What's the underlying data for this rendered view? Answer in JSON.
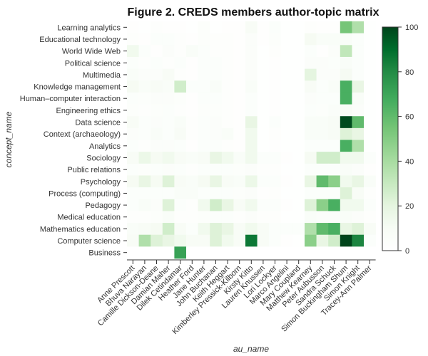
{
  "chart_data": {
    "type": "heatmap",
    "title": "Figure 2. CREDS members author-topic matrix",
    "xlabel": "au_name",
    "ylabel": "concept_name",
    "x_categories": [
      "Anne Prescott",
      "Bhuva Narayan",
      "Camille Dickson-Deane",
      "Damian Maher",
      "Dilek Cetindamar",
      "Heather Ford",
      "Jane Hunter",
      "John Buchanan",
      "Keith Heggart",
      "Kimberley Pressick-Kilborn",
      "Kirsty Kitto",
      "Lauren Knussen",
      "Lori Lockyer",
      "Marco Angelini",
      "Mary Coupland",
      "Matthew Kearney",
      "Peter Aubusson",
      "Sandra Schuck",
      "Simon Buckingham Shum",
      "Simon Knight",
      "Tracey-Ann Palmer"
    ],
    "y_categories": [
      "Learning analytics",
      "Educational technology",
      "World Wide Web",
      "Political science",
      "Multimedia",
      "Knowledge management",
      "Human–computer interaction",
      "Engineering ethics",
      "Data science",
      "Context (archaeology)",
      "Analytics",
      "Sociology",
      "Public relations",
      "Psychology",
      "Process (computing)",
      "Pedagogy",
      "Medical education",
      "Mathematics education",
      "Computer science",
      "Business"
    ],
    "values": [
      [
        2,
        1,
        3,
        2,
        2,
        1,
        4,
        1,
        2,
        2,
        10,
        2,
        5,
        1,
        1,
        3,
        2,
        2,
        55,
        40,
        1
      ],
      [
        3,
        2,
        5,
        5,
        3,
        2,
        4,
        3,
        3,
        2,
        6,
        2,
        4,
        1,
        1,
        12,
        8,
        8,
        8,
        5,
        1
      ],
      [
        15,
        5,
        2,
        6,
        3,
        8,
        5,
        3,
        3,
        2,
        6,
        1,
        3,
        1,
        1,
        5,
        2,
        6,
        35,
        5,
        1
      ],
      [
        5,
        3,
        5,
        3,
        5,
        2,
        5,
        5,
        3,
        2,
        6,
        1,
        2,
        1,
        1,
        6,
        6,
        5,
        8,
        5,
        1
      ],
      [
        8,
        6,
        6,
        10,
        3,
        2,
        5,
        5,
        3,
        2,
        6,
        1,
        2,
        1,
        1,
        22,
        6,
        6,
        12,
        5,
        1
      ],
      [
        12,
        8,
        10,
        8,
        30,
        5,
        5,
        8,
        3,
        2,
        8,
        1,
        2,
        1,
        1,
        10,
        5,
        8,
        65,
        20,
        1
      ],
      [
        5,
        4,
        6,
        6,
        4,
        2,
        5,
        5,
        3,
        2,
        5,
        1,
        2,
        1,
        1,
        6,
        5,
        5,
        65,
        8,
        1
      ],
      [
        4,
        3,
        4,
        5,
        3,
        2,
        4,
        4,
        3,
        2,
        5,
        1,
        2,
        1,
        1,
        5,
        4,
        7,
        10,
        6,
        1
      ],
      [
        10,
        5,
        6,
        5,
        8,
        3,
        5,
        6,
        3,
        2,
        20,
        1,
        5,
        1,
        1,
        8,
        8,
        10,
        98,
        60,
        1
      ],
      [
        6,
        5,
        8,
        5,
        10,
        3,
        5,
        6,
        8,
        2,
        15,
        1,
        3,
        1,
        1,
        8,
        8,
        10,
        25,
        20,
        1
      ],
      [
        5,
        3,
        6,
        6,
        5,
        2,
        5,
        5,
        3,
        2,
        15,
        1,
        2,
        1,
        1,
        5,
        5,
        5,
        65,
        40,
        1
      ],
      [
        10,
        18,
        12,
        15,
        10,
        8,
        10,
        20,
        15,
        8,
        15,
        5,
        5,
        2,
        1,
        12,
        30,
        30,
        15,
        15,
        5
      ],
      [
        5,
        4,
        5,
        6,
        5,
        3,
        5,
        5,
        5,
        4,
        6,
        3,
        3,
        1,
        1,
        5,
        5,
        5,
        8,
        6,
        2
      ],
      [
        12,
        20,
        12,
        25,
        10,
        8,
        12,
        20,
        10,
        8,
        18,
        5,
        5,
        2,
        1,
        20,
        60,
        50,
        15,
        20,
        8
      ],
      [
        5,
        5,
        5,
        5,
        8,
        8,
        5,
        5,
        5,
        4,
        6,
        2,
        3,
        1,
        1,
        5,
        5,
        5,
        25,
        10,
        3
      ],
      [
        5,
        8,
        6,
        25,
        5,
        3,
        15,
        30,
        20,
        10,
        15,
        5,
        5,
        2,
        1,
        25,
        50,
        65,
        15,
        15,
        5
      ],
      [
        3,
        3,
        4,
        8,
        3,
        3,
        4,
        5,
        5,
        3,
        6,
        3,
        3,
        1,
        1,
        8,
        6,
        6,
        8,
        6,
        3
      ],
      [
        8,
        10,
        12,
        30,
        10,
        5,
        15,
        25,
        20,
        10,
        15,
        10,
        5,
        5,
        5,
        40,
        60,
        65,
        20,
        25,
        10
      ],
      [
        10,
        40,
        25,
        20,
        15,
        10,
        10,
        25,
        15,
        10,
        85,
        10,
        5,
        2,
        1,
        50,
        20,
        30,
        100,
        80,
        5
      ],
      [
        0,
        0,
        0,
        0,
        70,
        0,
        0,
        0,
        0,
        0,
        0,
        0,
        0,
        0,
        0,
        0,
        0,
        0,
        0,
        0,
        0
      ]
    ],
    "zlim": [
      0,
      100
    ],
    "colorbar_ticks": [
      0,
      20,
      40,
      60,
      80,
      100
    ],
    "colorscale": [
      "#ffffff",
      "#f7fcf5",
      "#e5f5e0",
      "#c7e9c0",
      "#a1d99b",
      "#74c476",
      "#41ab5d",
      "#238b45",
      "#006d2c",
      "#00441b"
    ],
    "grid": false,
    "legend": "colorbar-right"
  }
}
